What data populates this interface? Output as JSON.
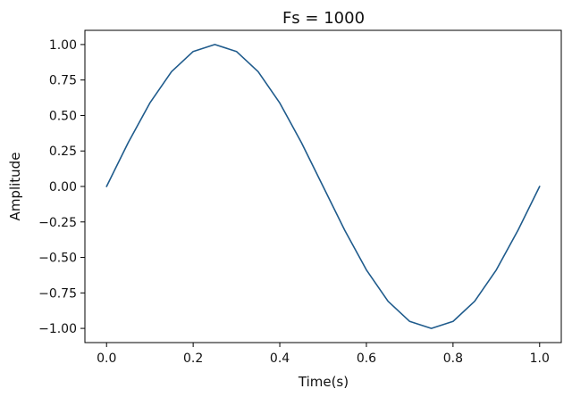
{
  "chart_data": {
    "type": "line",
    "title": "Fs = 1000",
    "xlabel": "Time(s)",
    "ylabel": "Amplitude",
    "xlim": [
      -0.05,
      1.05
    ],
    "ylim": [
      -1.1,
      1.1
    ],
    "x_ticks": [
      0.0,
      0.2,
      0.4,
      0.6,
      0.8,
      1.0
    ],
    "x_tick_labels": [
      "0.0",
      "0.2",
      "0.4",
      "0.6",
      "0.8",
      "1.0"
    ],
    "y_ticks": [
      1.0,
      0.75,
      0.5,
      0.25,
      0.0,
      -0.25,
      -0.5,
      -0.75,
      -1.0
    ],
    "y_tick_labels": [
      "1.00",
      "0.75",
      "0.50",
      "0.25",
      "0.00",
      "−0.25",
      "−0.50",
      "−0.75",
      "−1.00"
    ],
    "grid": false,
    "legend": "none",
    "series": [
      {
        "color": "#1f5b8c",
        "x": [
          0.0,
          0.05,
          0.1,
          0.15,
          0.2,
          0.25,
          0.3,
          0.35,
          0.4,
          0.45,
          0.5,
          0.55,
          0.6,
          0.65,
          0.7,
          0.75,
          0.8,
          0.85,
          0.9,
          0.95,
          1.0
        ],
        "y": [
          0.0,
          0.309,
          0.588,
          0.809,
          0.951,
          1.0,
          0.951,
          0.809,
          0.588,
          0.309,
          0.0,
          -0.309,
          -0.588,
          -0.809,
          -0.951,
          -1.0,
          -0.951,
          -0.809,
          -0.588,
          -0.309,
          0.0
        ]
      }
    ]
  }
}
